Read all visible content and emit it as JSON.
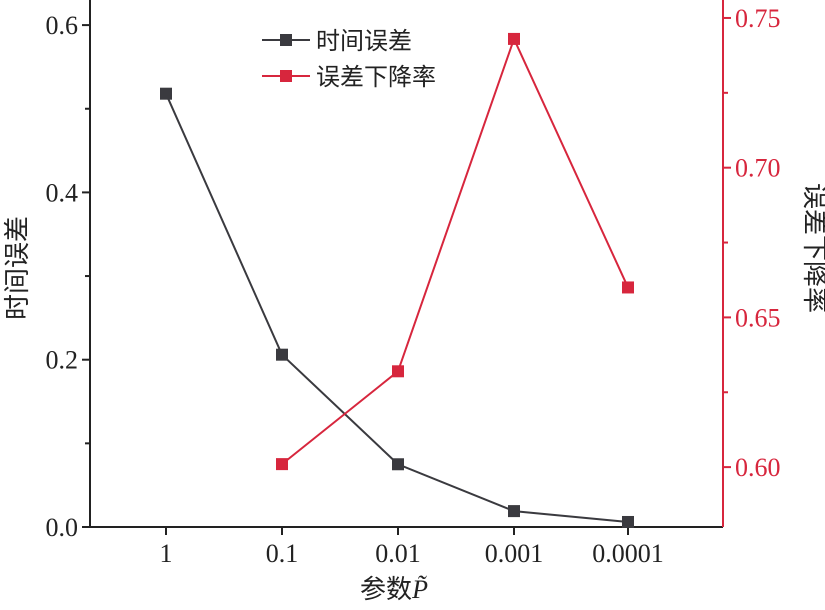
{
  "chart_data": {
    "type": "line",
    "x": [
      "1",
      "0.1",
      "0.01",
      "0.001",
      "0.0001"
    ],
    "xlabel_prefix": "参数",
    "xlabel_symbol": "P̃",
    "ylabel_left": "时间误差",
    "ylabel_right": "误差下降率",
    "ylim_left": [
      0,
      0.63
    ],
    "ylim_right": [
      0.58,
      0.756
    ],
    "left_ticks": [
      "0.0",
      "0.2",
      "0.4",
      "0.6"
    ],
    "right_ticks": [
      "0.60",
      "0.65",
      "0.70",
      "0.75"
    ],
    "series": [
      {
        "name": "时间误差",
        "axis": "left",
        "color": "#3a3a3f",
        "values": [
          0.518,
          0.206,
          0.075,
          0.019,
          0.006
        ]
      },
      {
        "name": "误差下降率",
        "axis": "right",
        "color": "#d7263d",
        "values": [
          null,
          0.601,
          0.632,
          0.743,
          0.66
        ]
      }
    ],
    "legend_position": "top-center",
    "grid": false
  }
}
